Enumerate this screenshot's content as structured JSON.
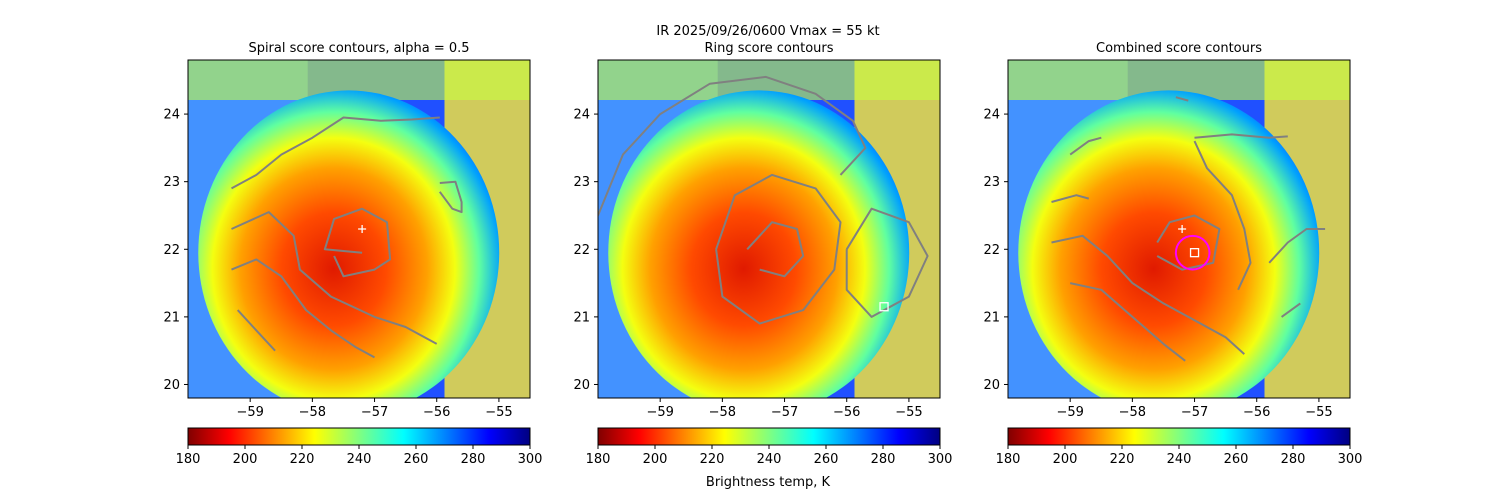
{
  "figure": {
    "suptitle": "IR  2025/09/26/0600    Vmax = 55 kt",
    "colorbar_label": "Brightness temp, K"
  },
  "chart_data": [
    {
      "type": "heatmap",
      "title": "Spiral score contours, alpha =  0.5",
      "xlim": [
        -60,
        -54.5
      ],
      "ylim": [
        19.8,
        24.8
      ],
      "xticks": [
        -59,
        -58,
        -57,
        -56,
        -55
      ],
      "yticks": [
        20,
        21,
        22,
        23,
        24
      ],
      "center_marker": {
        "lon": -57.2,
        "lat": 22.3
      },
      "contours": [
        {
          "name": "central-loop",
          "points": [
            [
              -57.2,
              21.95
            ],
            [
              -57.8,
              22.0
            ],
            [
              -57.65,
              22.45
            ],
            [
              -57.2,
              22.6
            ],
            [
              -56.8,
              22.4
            ],
            [
              -56.75,
              21.85
            ],
            [
              -57.0,
              21.7
            ],
            [
              -57.5,
              21.6
            ],
            [
              -57.65,
              21.9
            ]
          ]
        },
        {
          "name": "north-arc",
          "points": [
            [
              -59.3,
              22.9
            ],
            [
              -58.9,
              23.1
            ],
            [
              -58.5,
              23.4
            ],
            [
              -58.0,
              23.65
            ],
            [
              -57.5,
              23.95
            ],
            [
              -56.9,
              23.9
            ],
            [
              -56.4,
              23.92
            ],
            [
              -55.95,
              23.95
            ]
          ]
        },
        {
          "name": "ne-loop",
          "points": [
            [
              -55.95,
              22.98
            ],
            [
              -55.7,
              23.0
            ],
            [
              -55.6,
              22.7
            ],
            [
              -55.6,
              22.55
            ],
            [
              -55.75,
              22.6
            ],
            [
              -55.95,
              22.85
            ]
          ]
        },
        {
          "name": "western-band",
          "points": [
            [
              -59.3,
              22.3
            ],
            [
              -58.7,
              22.55
            ],
            [
              -58.3,
              22.2
            ],
            [
              -58.2,
              21.7
            ],
            [
              -57.7,
              21.3
            ],
            [
              -57.0,
              21.0
            ],
            [
              -56.5,
              20.85
            ],
            [
              -56.0,
              20.6
            ]
          ]
        },
        {
          "name": "southern-band",
          "points": [
            [
              -59.3,
              21.7
            ],
            [
              -58.9,
              21.85
            ],
            [
              -58.5,
              21.6
            ],
            [
              -58.1,
              21.1
            ],
            [
              -57.7,
              20.8
            ],
            [
              -57.3,
              20.55
            ],
            [
              -57.0,
              20.4
            ]
          ]
        },
        {
          "name": "sw-tail",
          "points": [
            [
              -59.2,
              21.1
            ],
            [
              -58.8,
              20.7
            ],
            [
              -58.6,
              20.5
            ]
          ]
        }
      ]
    },
    {
      "type": "heatmap",
      "title": "Ring score contours",
      "xlim": [
        -60,
        -54.5
      ],
      "ylim": [
        19.8,
        24.8
      ],
      "xticks": [
        -59,
        -58,
        -57,
        -56,
        -55
      ],
      "yticks": [
        20,
        21,
        22,
        23,
        24
      ],
      "square_marker": {
        "lon": -55.4,
        "lat": 21.15
      },
      "contours": [
        {
          "name": "northern-ring",
          "points": [
            [
              -60,
              22.5
            ],
            [
              -59.6,
              23.4
            ],
            [
              -59.0,
              24.0
            ],
            [
              -58.2,
              24.45
            ],
            [
              -57.3,
              24.55
            ],
            [
              -56.5,
              24.3
            ],
            [
              -55.9,
              23.9
            ],
            [
              -55.7,
              23.5
            ],
            [
              -56.1,
              23.1
            ]
          ]
        },
        {
          "name": "inner-ring",
          "points": [
            [
              -58.1,
              22.0
            ],
            [
              -57.8,
              22.8
            ],
            [
              -57.2,
              23.1
            ],
            [
              -56.5,
              22.9
            ],
            [
              -56.1,
              22.4
            ],
            [
              -56.2,
              21.7
            ],
            [
              -56.7,
              21.1
            ],
            [
              -57.4,
              20.9
            ],
            [
              -58.0,
              21.3
            ],
            [
              -58.1,
              22.0
            ]
          ]
        },
        {
          "name": "inner-spiral",
          "points": [
            [
              -57.6,
              22.0
            ],
            [
              -57.2,
              22.4
            ],
            [
              -56.8,
              22.3
            ],
            [
              -56.7,
              21.9
            ],
            [
              -57.0,
              21.6
            ],
            [
              -57.4,
              21.7
            ]
          ]
        },
        {
          "name": "eastern-cluster",
          "points": [
            [
              -56.0,
              22.0
            ],
            [
              -55.6,
              22.6
            ],
            [
              -55.0,
              22.4
            ],
            [
              -54.7,
              21.9
            ],
            [
              -55.0,
              21.3
            ],
            [
              -55.6,
              21.0
            ],
            [
              -56.0,
              21.4
            ],
            [
              -56.0,
              22.0
            ]
          ]
        }
      ]
    },
    {
      "type": "heatmap",
      "title": "Combined score contours",
      "xlim": [
        -60,
        -54.5
      ],
      "ylim": [
        19.8,
        24.8
      ],
      "xticks": [
        -59,
        -58,
        -57,
        -56,
        -55
      ],
      "yticks": [
        20,
        21,
        22,
        23,
        24
      ],
      "center_marker": {
        "lon": -57.2,
        "lat": 22.3
      },
      "square_marker": {
        "lon": -57.0,
        "lat": 21.95
      },
      "magenta_ring": {
        "lon": -57.03,
        "lat": 21.95,
        "radius_deg": 0.27
      },
      "contours": [
        {
          "name": "northern-band",
          "points": [
            [
              -57.0,
              23.65
            ],
            [
              -56.4,
              23.7
            ],
            [
              -55.8,
              23.65
            ],
            [
              -55.5,
              23.67
            ]
          ]
        },
        {
          "name": "north-tick",
          "points": [
            [
              -57.3,
              24.25
            ],
            [
              -57.1,
              24.2
            ]
          ]
        },
        {
          "name": "nw-tick",
          "points": [
            [
              -59.0,
              23.4
            ],
            [
              -58.7,
              23.6
            ],
            [
              -58.5,
              23.65
            ]
          ]
        },
        {
          "name": "inner-loop",
          "points": [
            [
              -57.6,
              22.1
            ],
            [
              -57.4,
              22.4
            ],
            [
              -57.0,
              22.5
            ],
            [
              -56.6,
              22.3
            ],
            [
              -56.7,
              21.8
            ],
            [
              -57.2,
              21.7
            ],
            [
              -57.6,
              21.9
            ]
          ]
        },
        {
          "name": "east-curve",
          "points": [
            [
              -57.0,
              23.6
            ],
            [
              -56.8,
              23.2
            ],
            [
              -56.4,
              22.8
            ],
            [
              -56.2,
              22.3
            ],
            [
              -56.1,
              21.8
            ],
            [
              -56.3,
              21.4
            ]
          ]
        },
        {
          "name": "west-band",
          "points": [
            [
              -59.3,
              22.1
            ],
            [
              -58.8,
              22.2
            ],
            [
              -58.4,
              21.9
            ],
            [
              -58.0,
              21.5
            ],
            [
              -57.5,
              21.2
            ],
            [
              -57.0,
              20.95
            ],
            [
              -56.5,
              20.7
            ],
            [
              -56.2,
              20.45
            ]
          ]
        },
        {
          "name": "south-band",
          "points": [
            [
              -59.0,
              21.5
            ],
            [
              -58.5,
              21.4
            ],
            [
              -58.0,
              21.0
            ],
            [
              -57.5,
              20.6
            ],
            [
              -57.15,
              20.35
            ]
          ]
        },
        {
          "name": "west-arc",
          "points": [
            [
              -59.3,
              22.7
            ],
            [
              -58.9,
              22.8
            ],
            [
              -58.7,
              22.75
            ]
          ]
        },
        {
          "name": "east-arc",
          "points": [
            [
              -55.8,
              21.8
            ],
            [
              -55.5,
              22.1
            ],
            [
              -55.2,
              22.3
            ],
            [
              -54.9,
              22.3
            ]
          ]
        },
        {
          "name": "east-tail",
          "points": [
            [
              -55.6,
              21.0
            ],
            [
              -55.3,
              21.2
            ]
          ]
        }
      ]
    }
  ],
  "colorbar": {
    "range": [
      180,
      300
    ],
    "ticks": [
      180,
      200,
      220,
      240,
      260,
      280,
      300
    ],
    "colormap": "jet_r"
  },
  "colors": {
    "contour": "#808080",
    "marker": "#ffffff",
    "ring": "#ff00ff"
  }
}
